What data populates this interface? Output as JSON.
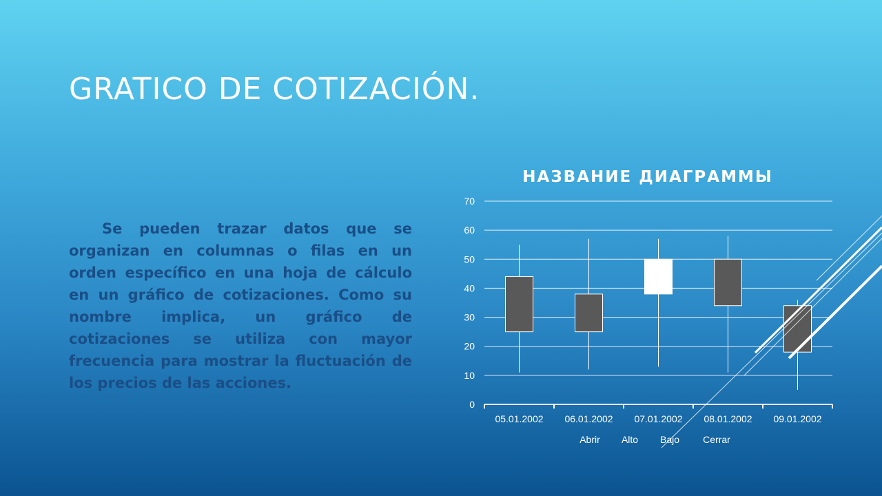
{
  "slide": {
    "title": "GRATICO DE COTIZACIÓN.",
    "body": "Se pueden trazar datos que se organizan en columnas o filas en un orden específico en una hoja de cálculo en un gráfico de cotizaciones. Como su nombre implica, un gráfico de cotizaciones se utiliza con mayor frecuencia para mostrar la fluctuación de los precios de las acciones."
  },
  "colors": {
    "bg_top": "#5fd2f0",
    "bg_bottom": "#0b5391",
    "text": "#ffffff",
    "body_text": "#1a4e86",
    "candle_down": "#595959",
    "candle_up": "#ffffff"
  },
  "chart_data": {
    "type": "candlestick",
    "title": "НАЗВАНИЕ ДИАГРАММЫ",
    "categories": [
      "05.01.2002",
      "06.01.2002",
      "07.01.2002",
      "08.01.2002",
      "09.01.2002"
    ],
    "open": [
      44,
      38,
      38,
      50,
      34
    ],
    "high": [
      55,
      57,
      57,
      58,
      36
    ],
    "low": [
      11,
      12,
      13,
      11,
      5
    ],
    "close": [
      25,
      25,
      50,
      34,
      18
    ],
    "ylim": [
      0,
      70
    ],
    "yticks": [
      0,
      10,
      20,
      30,
      40,
      50,
      60,
      70
    ],
    "grid": true,
    "legend": {
      "position": "bottom",
      "entries": [
        "Abrir",
        "Alto",
        "Bajo",
        "Cerrar"
      ]
    }
  }
}
